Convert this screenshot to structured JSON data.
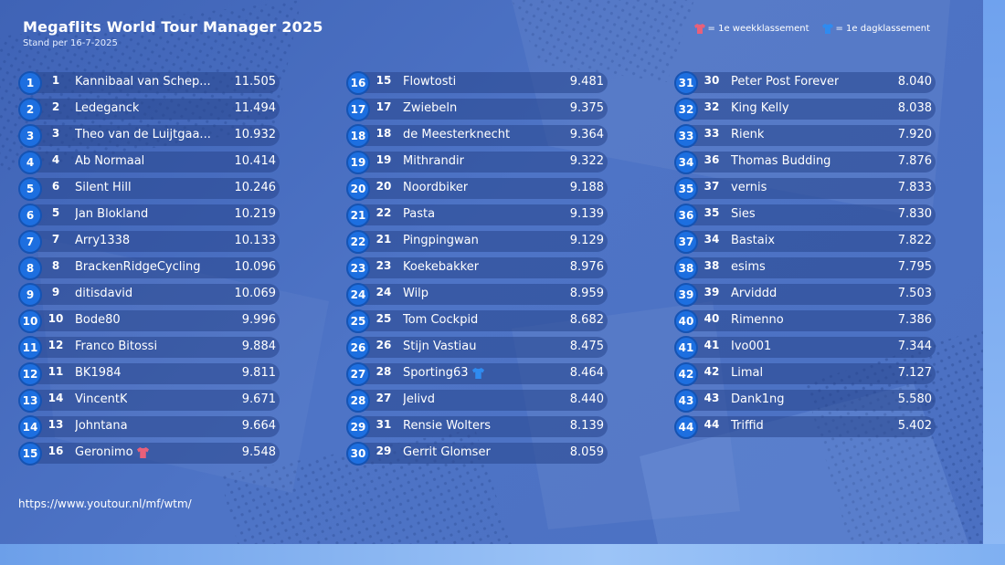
{
  "header": {
    "title": "Megaflits World Tour Manager 2025",
    "subtitle": "Stand per 16-7-2025"
  },
  "legend": {
    "week_label": "= 1e weekklassement",
    "day_label": "= 1e dagklassement",
    "week_color": "#e8607a",
    "day_color": "#2f8bf0"
  },
  "colors": {
    "rank_badge": "#1d6fe0",
    "row_bar": "#2a4a8e"
  },
  "standings": [
    {
      "rank": "1",
      "prev": "1",
      "name": "Kannibaal van Schep...",
      "score": "11.505"
    },
    {
      "rank": "2",
      "prev": "2",
      "name": "Ledeganck",
      "score": "11.494"
    },
    {
      "rank": "3",
      "prev": "3",
      "name": "Theo van de Luijtgaa...",
      "score": "10.932"
    },
    {
      "rank": "4",
      "prev": "4",
      "name": "Ab Normaal",
      "score": "10.414"
    },
    {
      "rank": "5",
      "prev": "6",
      "name": "Silent Hill",
      "score": "10.246"
    },
    {
      "rank": "6",
      "prev": "5",
      "name": "Jan Blokland",
      "score": "10.219"
    },
    {
      "rank": "7",
      "prev": "7",
      "name": "Arry1338",
      "score": "10.133"
    },
    {
      "rank": "8",
      "prev": "8",
      "name": "BrackenRidgeCycling",
      "score": "10.096"
    },
    {
      "rank": "9",
      "prev": "9",
      "name": "ditisdavid",
      "score": "10.069"
    },
    {
      "rank": "10",
      "prev": "10",
      "name": "Bode80",
      "score": "9.996"
    },
    {
      "rank": "11",
      "prev": "12",
      "name": "Franco Bitossi",
      "score": "9.884"
    },
    {
      "rank": "12",
      "prev": "11",
      "name": "BK1984",
      "score": "9.811"
    },
    {
      "rank": "13",
      "prev": "14",
      "name": "VincentK",
      "score": "9.671"
    },
    {
      "rank": "14",
      "prev": "13",
      "name": "Johntana",
      "score": "9.664"
    },
    {
      "rank": "15",
      "prev": "16",
      "name": "Geronimo",
      "score": "9.548",
      "badge": "week"
    },
    {
      "rank": "16",
      "prev": "15",
      "name": "Flowtosti",
      "score": "9.481"
    },
    {
      "rank": "17",
      "prev": "17",
      "name": "Zwiebeln",
      "score": "9.375"
    },
    {
      "rank": "18",
      "prev": "18",
      "name": "de Meesterknecht",
      "score": "9.364"
    },
    {
      "rank": "19",
      "prev": "19",
      "name": "Mithrandir",
      "score": "9.322"
    },
    {
      "rank": "20",
      "prev": "20",
      "name": "Noordbiker",
      "score": "9.188"
    },
    {
      "rank": "21",
      "prev": "22",
      "name": "Pasta",
      "score": "9.139"
    },
    {
      "rank": "22",
      "prev": "21",
      "name": "Pingpingwan",
      "score": "9.129"
    },
    {
      "rank": "23",
      "prev": "23",
      "name": "Koekebakker",
      "score": "8.976"
    },
    {
      "rank": "24",
      "prev": "24",
      "name": "Wilp",
      "score": "8.959"
    },
    {
      "rank": "25",
      "prev": "25",
      "name": "Tom Cockpid",
      "score": "8.682"
    },
    {
      "rank": "26",
      "prev": "26",
      "name": "Stijn Vastiau",
      "score": "8.475"
    },
    {
      "rank": "27",
      "prev": "28",
      "name": "Sporting63",
      "score": "8.464",
      "badge": "day"
    },
    {
      "rank": "28",
      "prev": "27",
      "name": "Jelivd",
      "score": "8.440"
    },
    {
      "rank": "29",
      "prev": "31",
      "name": "Rensie Wolters",
      "score": "8.139"
    },
    {
      "rank": "30",
      "prev": "29",
      "name": "Gerrit Glomser",
      "score": "8.059"
    },
    {
      "rank": "31",
      "prev": "30",
      "name": "Peter Post Forever",
      "score": "8.040"
    },
    {
      "rank": "32",
      "prev": "32",
      "name": "King Kelly",
      "score": "8.038"
    },
    {
      "rank": "33",
      "prev": "33",
      "name": "Rienk",
      "score": "7.920"
    },
    {
      "rank": "34",
      "prev": "36",
      "name": "Thomas Budding",
      "score": "7.876"
    },
    {
      "rank": "35",
      "prev": "37",
      "name": "vernis",
      "score": "7.833"
    },
    {
      "rank": "36",
      "prev": "35",
      "name": "Sies",
      "score": "7.830"
    },
    {
      "rank": "37",
      "prev": "34",
      "name": "Bastaix",
      "score": "7.822"
    },
    {
      "rank": "38",
      "prev": "38",
      "name": "esims",
      "score": "7.795"
    },
    {
      "rank": "39",
      "prev": "39",
      "name": "Arviddd",
      "score": "7.503"
    },
    {
      "rank": "40",
      "prev": "40",
      "name": "Rimenno",
      "score": "7.386"
    },
    {
      "rank": "41",
      "prev": "41",
      "name": "Ivo001",
      "score": "7.344"
    },
    {
      "rank": "42",
      "prev": "42",
      "name": "Limal",
      "score": "7.127"
    },
    {
      "rank": "43",
      "prev": "43",
      "name": "Dank1ng",
      "score": "5.580"
    },
    {
      "rank": "44",
      "prev": "44",
      "name": "Triffid",
      "score": "5.402"
    }
  ],
  "footer": {
    "url": "https://www.youtour.nl/mf/wtm/"
  }
}
